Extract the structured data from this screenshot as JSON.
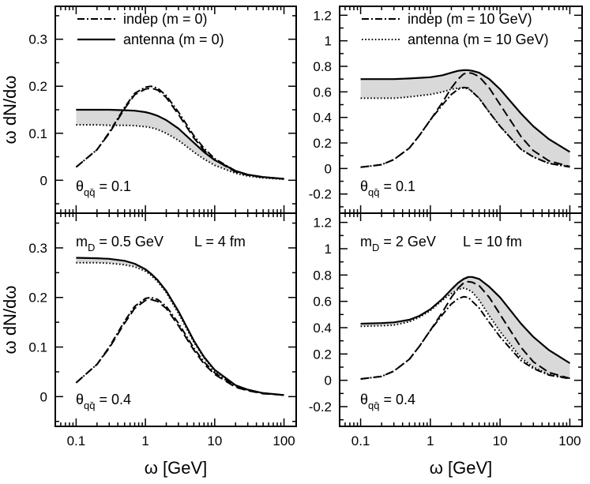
{
  "chart_data": [
    {
      "type": "line",
      "panel": "top-left",
      "xscale": "log",
      "xlim": [
        0.05,
        150
      ],
      "ylim": [
        -0.07,
        0.37
      ],
      "yticks": [
        "0",
        "0.1",
        "0.2",
        "0.3"
      ],
      "ytick_values": [
        0,
        0.1,
        0.2,
        0.3
      ],
      "xticks": [
        "0.1",
        "1",
        "10",
        "100"
      ],
      "xtick_values": [
        0.1,
        1,
        10,
        100
      ],
      "ylabel": "ω dN/dω",
      "xlabel": "",
      "legend": [
        "indep (m = 0)",
        "antenna (m = 0)"
      ],
      "annotation": {
        "symbol": "θ",
        "sub": "qq̄",
        "text": " = 0.1"
      },
      "band": "shaded region between upper and lower antenna curves",
      "x": [
        0.1,
        0.2,
        0.3,
        0.5,
        0.7,
        1,
        1.2,
        1.5,
        2,
        3,
        5,
        7,
        10,
        20,
        30,
        50,
        100
      ],
      "series": [
        {
          "name": "indep upper",
          "style": "dashdot",
          "values": [
            0.028,
            0.065,
            0.102,
            0.155,
            0.185,
            0.198,
            0.2,
            0.196,
            0.18,
            0.145,
            0.095,
            0.068,
            0.046,
            0.02,
            0.012,
            0.007,
            0.003
          ]
        },
        {
          "name": "indep lower",
          "style": "dash",
          "values": [
            0.028,
            0.065,
            0.1,
            0.152,
            0.182,
            0.194,
            0.196,
            0.192,
            0.176,
            0.14,
            0.09,
            0.064,
            0.043,
            0.018,
            0.011,
            0.006,
            0.003
          ]
        },
        {
          "name": "antenna upper",
          "style": "solid",
          "values": [
            0.15,
            0.15,
            0.15,
            0.149,
            0.148,
            0.145,
            0.142,
            0.137,
            0.128,
            0.11,
            0.08,
            0.06,
            0.043,
            0.02,
            0.012,
            0.007,
            0.003
          ]
        },
        {
          "name": "antenna lower",
          "style": "dot",
          "values": [
            0.118,
            0.118,
            0.117,
            0.117,
            0.116,
            0.114,
            0.112,
            0.108,
            0.1,
            0.085,
            0.06,
            0.045,
            0.032,
            0.015,
            0.009,
            0.005,
            0.002
          ]
        }
      ]
    },
    {
      "type": "line",
      "panel": "top-right",
      "xscale": "log",
      "xlim": [
        0.05,
        150
      ],
      "ylim": [
        -0.35,
        1.27
      ],
      "yticks": [
        "-0.2",
        "0",
        "0.2",
        "0.4",
        "0.6",
        "0.8",
        "1",
        "1.2"
      ],
      "ytick_values": [
        -0.2,
        0,
        0.2,
        0.4,
        0.6,
        0.8,
        1,
        1.2
      ],
      "xticks": [
        "0.1",
        "1",
        "10",
        "100"
      ],
      "xtick_values": [
        0.1,
        1,
        10,
        100
      ],
      "ylabel": "",
      "xlabel": "",
      "legend": [
        "indep (m = 10 GeV)",
        "antenna (m = 10 GeV)"
      ],
      "annotation": {
        "symbol": "θ",
        "sub": "qq̄",
        "text": " = 0.1"
      },
      "band": "shaded region between upper and lower antenna curves",
      "x": [
        0.1,
        0.2,
        0.3,
        0.5,
        0.7,
        1,
        1.5,
        2,
        2.5,
        3,
        3.5,
        4,
        5,
        7,
        10,
        20,
        30,
        50,
        100
      ],
      "series": [
        {
          "name": "indep upper",
          "style": "dash",
          "values": [
            0.01,
            0.03,
            0.07,
            0.16,
            0.26,
            0.38,
            0.52,
            0.63,
            0.7,
            0.74,
            0.75,
            0.745,
            0.72,
            0.63,
            0.5,
            0.25,
            0.14,
            0.06,
            0.015
          ]
        },
        {
          "name": "indep lower",
          "style": "dashdot",
          "values": [
            0.01,
            0.03,
            0.07,
            0.16,
            0.26,
            0.38,
            0.5,
            0.58,
            0.62,
            0.635,
            0.63,
            0.6,
            0.55,
            0.44,
            0.33,
            0.15,
            0.09,
            0.04,
            0.012
          ]
        },
        {
          "name": "antenna upper",
          "style": "solid",
          "values": [
            0.7,
            0.7,
            0.7,
            0.705,
            0.71,
            0.715,
            0.73,
            0.75,
            0.765,
            0.77,
            0.77,
            0.765,
            0.75,
            0.7,
            0.62,
            0.43,
            0.33,
            0.23,
            0.13
          ]
        },
        {
          "name": "antenna lower",
          "style": "dot",
          "values": [
            0.55,
            0.55,
            0.55,
            0.56,
            0.57,
            0.58,
            0.6,
            0.62,
            0.63,
            0.63,
            0.625,
            0.6,
            0.55,
            0.44,
            0.33,
            0.15,
            0.09,
            0.04,
            0.015
          ]
        }
      ]
    },
    {
      "type": "line",
      "panel": "bottom-left",
      "xscale": "log",
      "xlim": [
        0.05,
        150
      ],
      "ylim": [
        -0.06,
        0.37
      ],
      "yticks": [
        "0",
        "0.1",
        "0.2",
        "0.3"
      ],
      "ytick_values": [
        0,
        0.1,
        0.2,
        0.3
      ],
      "xticks": [
        "0.1",
        "1",
        "10",
        "100"
      ],
      "xtick_values": [
        0.1,
        1,
        10,
        100
      ],
      "ylabel": "ω dN/dω",
      "xlabel": "ω [GeV]",
      "legend": [],
      "params": {
        "mD_symbol": "m",
        "mD_sub": "D",
        "mD_text": " = 0.5 GeV",
        "L_text": "L = 4 fm"
      },
      "annotation": {
        "symbol": "θ",
        "sub": "qq̄",
        "text": " = 0.4"
      },
      "band": "thin shaded region between upper and lower antenna curves",
      "x": [
        0.1,
        0.2,
        0.3,
        0.5,
        0.7,
        1,
        1.2,
        1.5,
        2,
        3,
        5,
        7,
        10,
        20,
        30,
        50,
        100
      ],
      "series": [
        {
          "name": "indep upper",
          "style": "dashdot",
          "values": [
            0.028,
            0.065,
            0.1,
            0.152,
            0.182,
            0.198,
            0.2,
            0.196,
            0.182,
            0.148,
            0.098,
            0.07,
            0.048,
            0.021,
            0.013,
            0.007,
            0.003
          ]
        },
        {
          "name": "indep lower",
          "style": "dash",
          "values": [
            0.028,
            0.065,
            0.098,
            0.148,
            0.178,
            0.194,
            0.196,
            0.192,
            0.178,
            0.143,
            0.094,
            0.066,
            0.045,
            0.019,
            0.012,
            0.006,
            0.003
          ]
        },
        {
          "name": "antenna upper",
          "style": "solid",
          "values": [
            0.28,
            0.279,
            0.278,
            0.274,
            0.268,
            0.257,
            0.248,
            0.235,
            0.213,
            0.172,
            0.113,
            0.08,
            0.054,
            0.023,
            0.014,
            0.007,
            0.003
          ]
        },
        {
          "name": "antenna lower",
          "style": "dot",
          "values": [
            0.27,
            0.27,
            0.269,
            0.266,
            0.262,
            0.253,
            0.245,
            0.232,
            0.21,
            0.168,
            0.11,
            0.078,
            0.052,
            0.022,
            0.013,
            0.007,
            0.003
          ]
        }
      ]
    },
    {
      "type": "line",
      "panel": "bottom-right",
      "xscale": "log",
      "xlim": [
        0.05,
        150
      ],
      "ylim": [
        -0.35,
        1.27
      ],
      "yticks": [
        "-0.2",
        "0",
        "0.2",
        "0.4",
        "0.6",
        "0.8",
        "1",
        "1.2"
      ],
      "ytick_values": [
        -0.2,
        0,
        0.2,
        0.4,
        0.6,
        0.8,
        1,
        1.2
      ],
      "xticks": [
        "0.1",
        "1",
        "10",
        "100"
      ],
      "xtick_values": [
        0.1,
        1,
        10,
        100
      ],
      "ylabel": "",
      "xlabel": "ω [GeV]",
      "legend": [],
      "params": {
        "mD_symbol": "m",
        "mD_sub": "D",
        "mD_text": " = 2 GeV",
        "L_text": "L = 10 fm"
      },
      "annotation": {
        "symbol": "θ",
        "sub": "qq̄",
        "text": " = 0.4"
      },
      "band": "shaded region between upper and lower antenna curves",
      "x": [
        0.1,
        0.2,
        0.3,
        0.5,
        0.7,
        1,
        1.5,
        2,
        2.5,
        3,
        3.5,
        4,
        5,
        7,
        10,
        20,
        30,
        50,
        100
      ],
      "series": [
        {
          "name": "indep upper",
          "style": "dash",
          "values": [
            0.01,
            0.03,
            0.07,
            0.16,
            0.26,
            0.38,
            0.52,
            0.63,
            0.7,
            0.74,
            0.75,
            0.745,
            0.72,
            0.63,
            0.5,
            0.25,
            0.14,
            0.06,
            0.015
          ]
        },
        {
          "name": "indep lower",
          "style": "dashdot",
          "values": [
            0.01,
            0.03,
            0.07,
            0.16,
            0.26,
            0.38,
            0.5,
            0.58,
            0.62,
            0.635,
            0.63,
            0.6,
            0.55,
            0.44,
            0.33,
            0.15,
            0.09,
            0.04,
            0.012
          ]
        },
        {
          "name": "antenna upper",
          "style": "solid",
          "values": [
            0.43,
            0.435,
            0.44,
            0.46,
            0.49,
            0.54,
            0.62,
            0.69,
            0.74,
            0.77,
            0.785,
            0.785,
            0.77,
            0.71,
            0.63,
            0.43,
            0.33,
            0.23,
            0.13
          ]
        },
        {
          "name": "antenna lower",
          "style": "dot",
          "values": [
            0.41,
            0.415,
            0.42,
            0.445,
            0.48,
            0.53,
            0.61,
            0.66,
            0.69,
            0.7,
            0.69,
            0.67,
            0.61,
            0.49,
            0.37,
            0.17,
            0.1,
            0.045,
            0.015
          ]
        }
      ]
    }
  ]
}
